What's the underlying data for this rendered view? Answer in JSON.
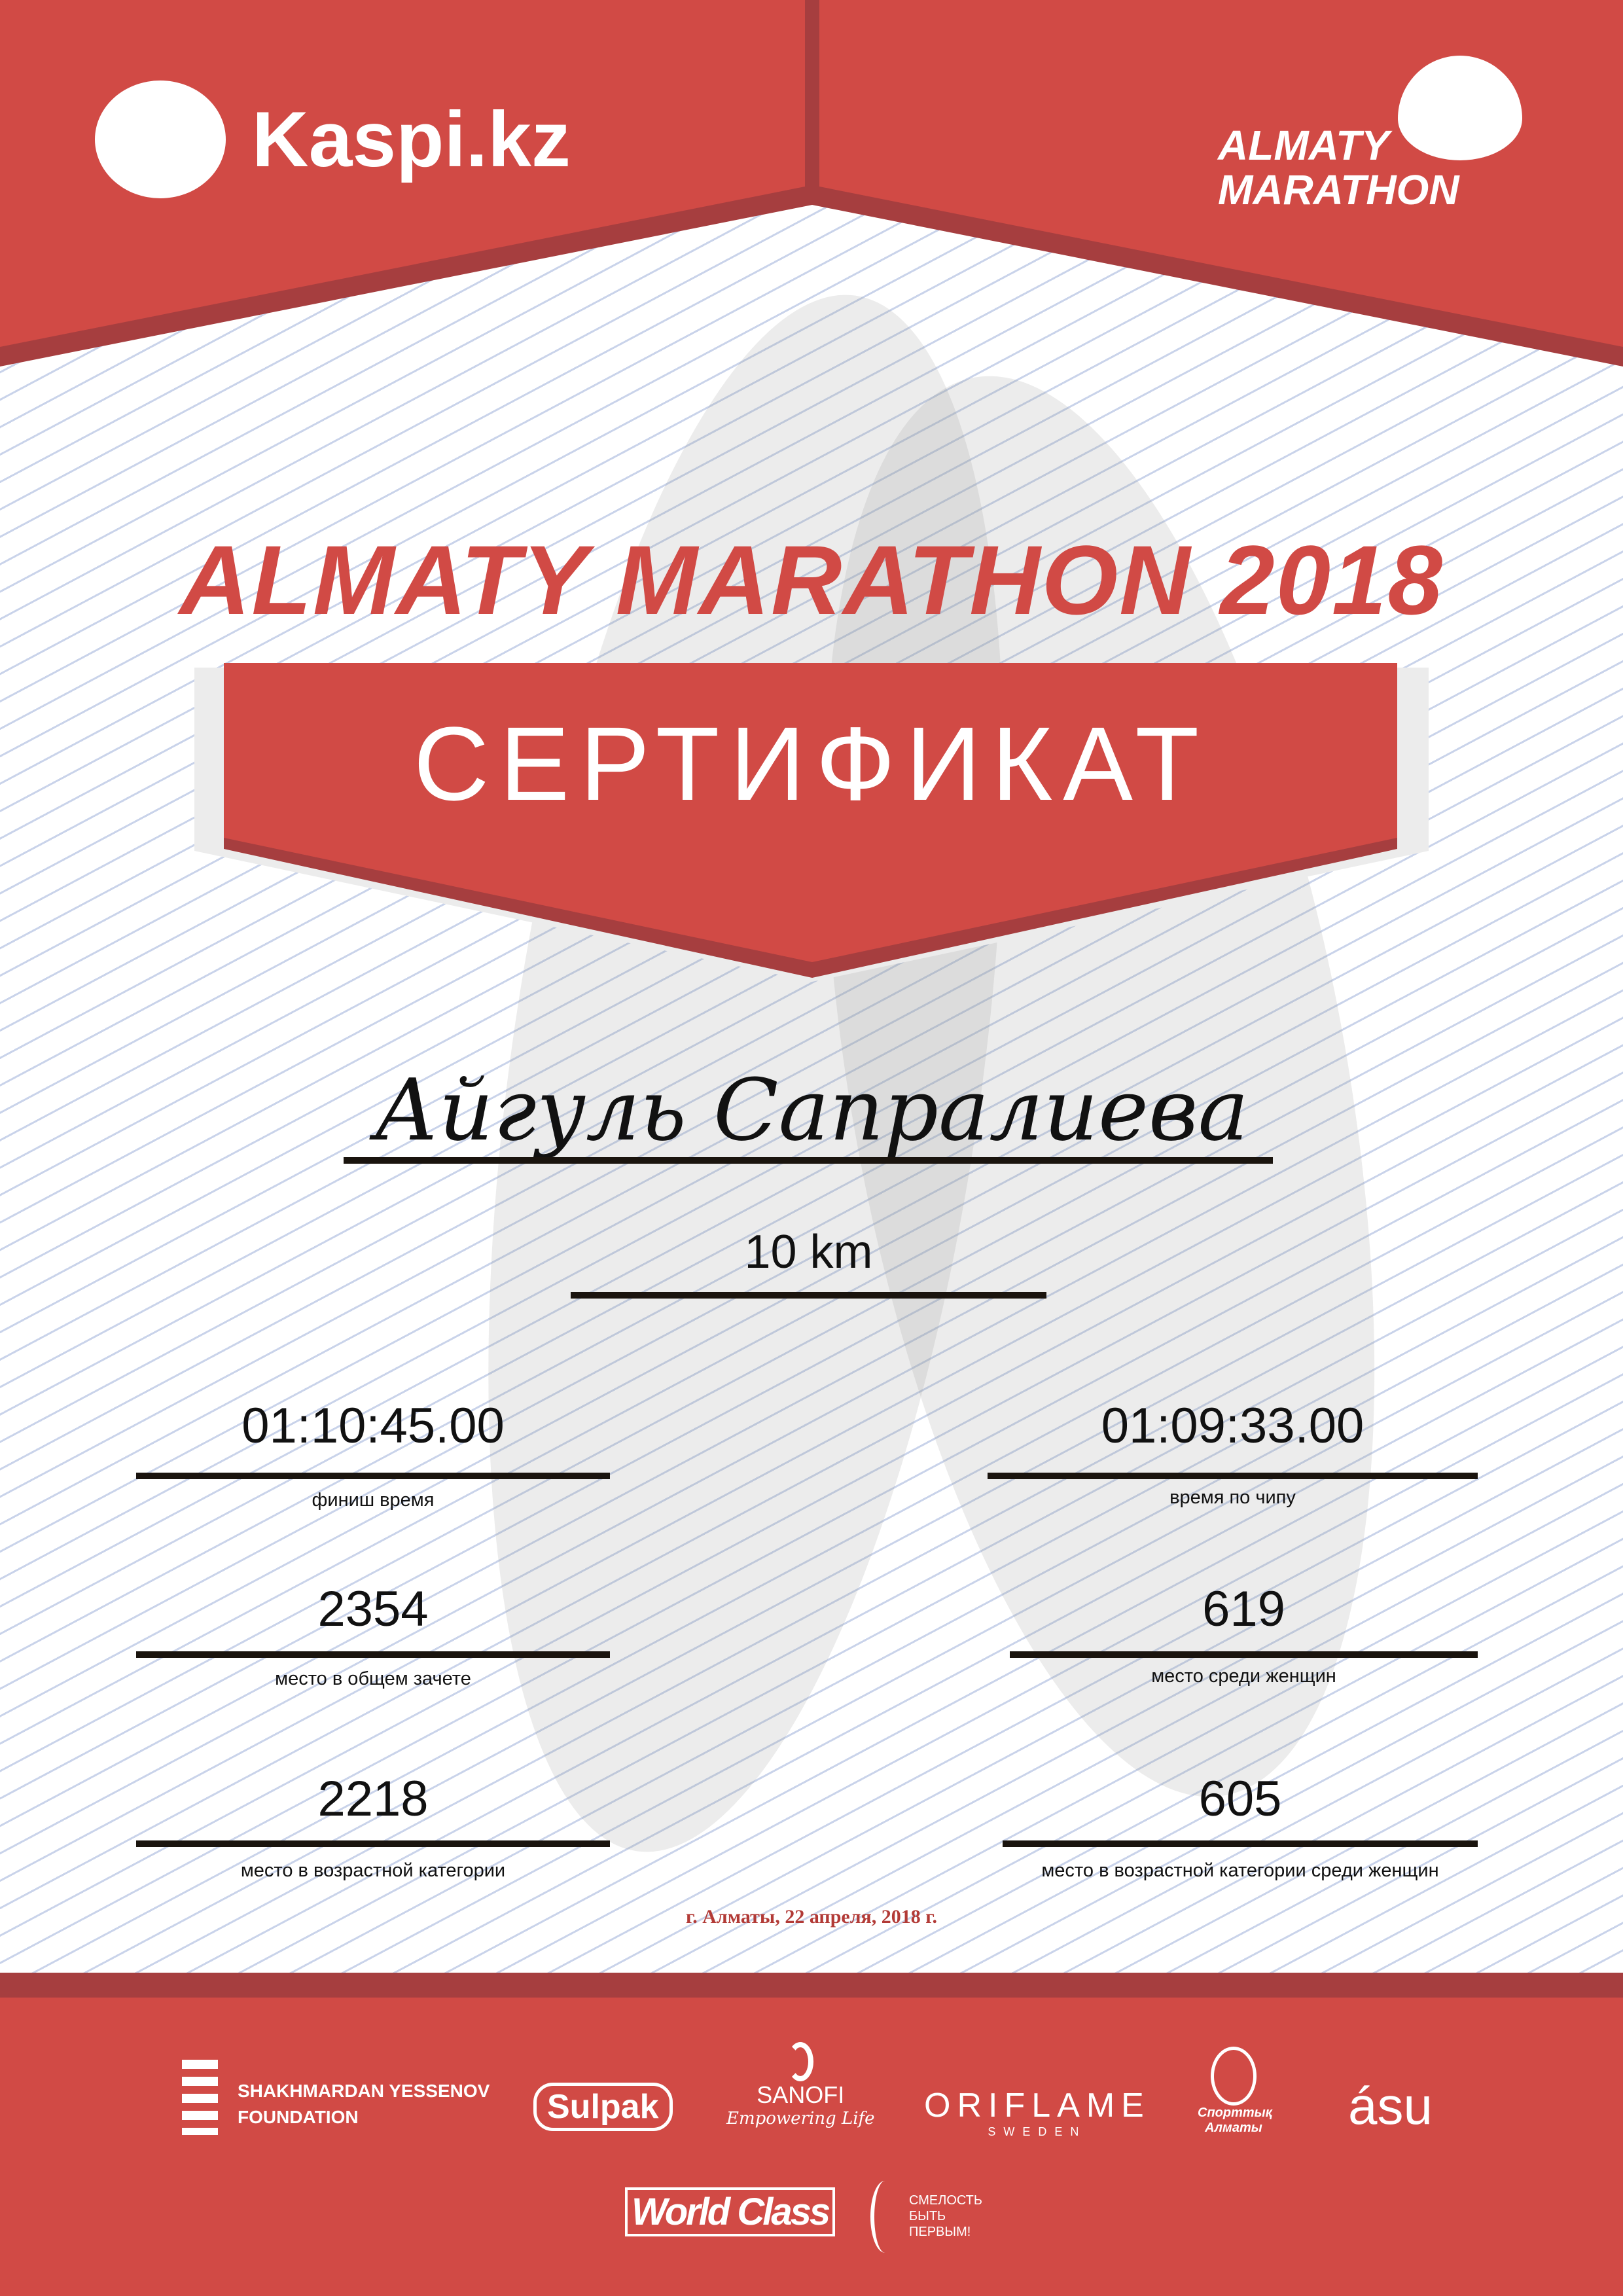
{
  "header": {
    "sponsor_logo": "Kaspi.kz",
    "event_logo_line1": "ALMATY",
    "event_logo_line2": "MARATHON"
  },
  "title": "ALMATY MARATHON 2018",
  "banner": "СЕРТИФИКАТ",
  "participant": {
    "name": "Айгуль Сапралиева",
    "distance": "10 km"
  },
  "results": [
    {
      "value": "01:10:45.00",
      "label": "финиш время"
    },
    {
      "value": "01:09:33.00",
      "label": "время по чипу"
    },
    {
      "value": "2354",
      "label": "место в общем зачете"
    },
    {
      "value": "619",
      "label": "место среди женщин"
    },
    {
      "value": "2218",
      "label": "место в возрастной категории"
    },
    {
      "value": "605",
      "label": "место в возрастной категории среди женщин"
    }
  ],
  "date": "г. Алматы, 22 апреля, 2018 г.",
  "sponsors": {
    "yessenov1": "SHAKHMARDAN YESSENOV",
    "yessenov2": "FOUNDATION",
    "sulpak": "Sulpak",
    "sanofi": "SANOFI",
    "sanofi_tag": "Empowering Life",
    "oriflame": "ORIFLAME",
    "oriflame_sub": "SWEDEN",
    "sport": "Спорттық Алматы",
    "asu": "ásu",
    "worldclass": "World Class",
    "smelost1": "СМЕЛОСТЬ",
    "smelost2": "БЫТЬ",
    "smelost3": "ПЕРВЫМ!"
  },
  "colors": {
    "brand_red": "#d14a45",
    "dark_red": "#a63e3f"
  }
}
